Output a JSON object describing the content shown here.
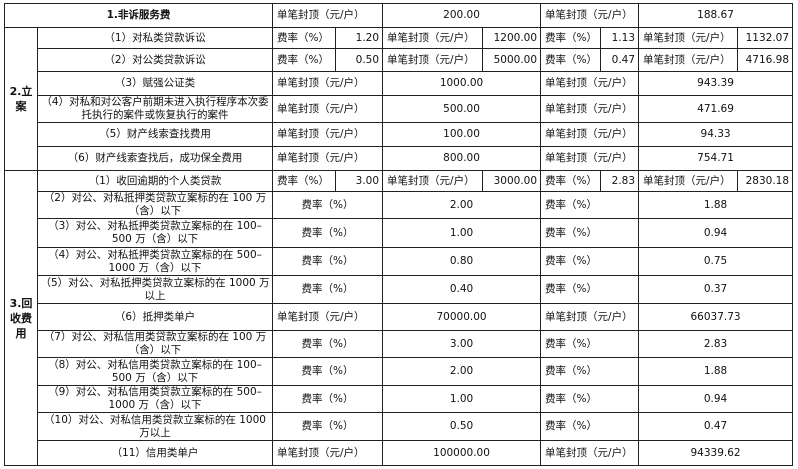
{
  "section1": {
    "title": "1.非诉服务费",
    "label_a": "单笔封顶（元/户）",
    "value_a": "200.00",
    "label_b": "单笔封顶（元/户）",
    "value_b": "188.67"
  },
  "section2": {
    "category": "2.立案",
    "rows": [
      {
        "item": "（1）对私类贷款诉讼",
        "type": "double",
        "a_rate_label": "费率（%）",
        "a_rate": "1.20",
        "a_cap_label": "单笔封顶（元/户）",
        "a_cap": "1200.00",
        "b_rate_label": "费率（%）",
        "b_rate": "1.13",
        "b_cap_label": "单笔封顶（元/户）",
        "b_cap": "1132.07"
      },
      {
        "item": "（2）对公类贷款诉讼",
        "type": "double",
        "a_rate_label": "费率（%）",
        "a_rate": "0.50",
        "a_cap_label": "单笔封顶（元/户）",
        "a_cap": "5000.00",
        "b_rate_label": "费率（%）",
        "b_rate": "0.47",
        "b_cap_label": "单笔封顶（元/户）",
        "b_cap": "4716.98"
      },
      {
        "item": "（3）赋强公证类",
        "type": "single",
        "label_a": "单笔封顶（元/户）",
        "value_a": "1000.00",
        "label_b": "单笔封顶（元/户）",
        "value_b": "943.39"
      },
      {
        "item": "（4）对私和对公客户前期未进入执行程序本次委托执行的案件或恢复执行的案件",
        "type": "single",
        "label_a": "单笔封顶（元/户）",
        "value_a": "500.00",
        "label_b": "单笔封顶（元/户）",
        "value_b": "471.69"
      },
      {
        "item": "（5）财产线索查找费用",
        "type": "single",
        "label_a": "单笔封顶（元/户）",
        "value_a": "100.00",
        "label_b": "单笔封顶（元/户）",
        "value_b": "94.33"
      },
      {
        "item": "（6）财产线索查找后，成功保全费用",
        "type": "single",
        "label_a": "单笔封顶（元/户）",
        "value_a": "800.00",
        "label_b": "单笔封顶（元/户）",
        "value_b": "754.71"
      }
    ]
  },
  "section3": {
    "category": "3.回收费用",
    "rows": [
      {
        "item": "（1）收回逾期的个人类贷款",
        "type": "double",
        "a_rate_label": "费率（%）",
        "a_rate": "3.00",
        "a_cap_label": "单笔封顶（元/户）",
        "a_cap": "3000.00",
        "b_rate_label": "费率（%）",
        "b_rate": "2.83",
        "b_cap_label": "单笔封顶（元/户）",
        "b_cap": "2830.18"
      },
      {
        "item": "（2）对公、对私抵押类贷款立案标的在 100 万（含）以下",
        "type": "single",
        "label_a": "费率（%）",
        "value_a": "2.00",
        "label_b": "费率（%）",
        "value_b": "1.88"
      },
      {
        "item": "（3）对公、对私抵押类贷款立案标的在 100–500 万（含）以下",
        "type": "single",
        "label_a": "费率（%）",
        "value_a": "1.00",
        "label_b": "费率（%）",
        "value_b": "0.94"
      },
      {
        "item": "（4）对公、对私抵押类贷款立案标的在 500–1000 万（含）以下",
        "type": "single",
        "label_a": "费率（%）",
        "value_a": "0.80",
        "label_b": "费率（%）",
        "value_b": "0.75"
      },
      {
        "item": "（5）对公、对私抵押类贷款立案标的在 1000 万以上",
        "type": "single",
        "label_a": "费率（%）",
        "value_a": "0.40",
        "label_b": "费率（%）",
        "value_b": "0.37"
      },
      {
        "item": "（6）抵押类单户",
        "type": "single",
        "label_a": "单笔封顶（元/户）",
        "value_a": "70000.00",
        "label_b": "单笔封顶（元/户）",
        "value_b": "66037.73"
      },
      {
        "item": "（7）对公、对私信用类贷款立案标的在 100 万（含）以下",
        "type": "single",
        "label_a": "费率（%）",
        "value_a": "3.00",
        "label_b": "费率（%）",
        "value_b": "2.83"
      },
      {
        "item": "（8）对公、对私信用类贷款立案标的在 100–500 万（含）以下",
        "type": "single",
        "label_a": "费率（%）",
        "value_a": "2.00",
        "label_b": "费率（%）",
        "value_b": "1.88"
      },
      {
        "item": "（9）对公、对私信用类贷款立案标的在 500–1000 万（含）以下",
        "type": "single",
        "label_a": "费率（%）",
        "value_a": "1.00",
        "label_b": "费率（%）",
        "value_b": "0.94"
      },
      {
        "item": "（10）对公、对私信用类贷款立案标的在 1000 万以上",
        "type": "single",
        "label_a": "费率（%）",
        "value_a": "0.50",
        "label_b": "费率（%）",
        "value_b": "0.47"
      },
      {
        "item": "（11）信用类单户",
        "type": "single",
        "label_a": "单笔封顶（元/户）",
        "value_a": "100000.00",
        "label_b": "单笔封顶（元/户）",
        "value_b": "94339.62"
      }
    ]
  }
}
